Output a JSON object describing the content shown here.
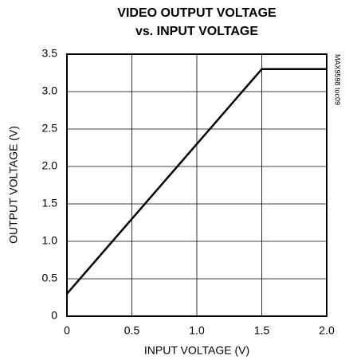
{
  "chart_data": {
    "type": "line",
    "title": [
      "VIDEO OUTPUT VOLTAGE",
      "vs. INPUT VOLTAGE"
    ],
    "x_label": "INPUT VOLTAGE (V)",
    "y_label": "OUTPUT VOLTAGE (V)",
    "annotation": "MAX9598 toc09",
    "x": [
      0,
      0.5,
      1.0,
      1.5,
      2.0
    ],
    "series": [
      {
        "name": "Output voltage",
        "color": "#000000",
        "values": [
          0.3,
          1.3,
          2.3,
          3.3,
          3.3
        ]
      }
    ],
    "xlim": [
      0,
      2
    ],
    "ylim": [
      0,
      3.5
    ],
    "xticks": [
      0,
      0.5,
      {
        "value": 1,
        "label": "1.0"
      },
      1.5,
      {
        "value": 2,
        "label": "2.0"
      }
    ],
    "yticks": [
      0,
      0.5,
      {
        "value": 1,
        "label": "1.0"
      },
      1.5,
      {
        "value": 2,
        "label": "2.0"
      },
      2.5,
      {
        "value": 3,
        "label": "3.0"
      },
      3.5
    ],
    "grid": true
  }
}
